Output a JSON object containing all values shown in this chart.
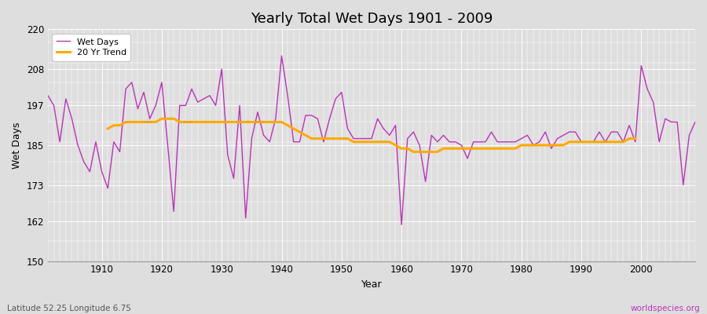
{
  "title": "Yearly Total Wet Days 1901 - 2009",
  "xlabel": "Year",
  "ylabel": "Wet Days",
  "lat_lon_label": "Latitude 52.25 Longitude 6.75",
  "watermark": "worldspecies.org",
  "ylim": [
    150,
    220
  ],
  "yticks": [
    150,
    162,
    173,
    185,
    197,
    208,
    220
  ],
  "line_color": "#bb33bb",
  "trend_color": "#ffaa00",
  "bg_color": "#dedede",
  "years": [
    1901,
    1902,
    1903,
    1904,
    1905,
    1906,
    1907,
    1908,
    1909,
    1910,
    1911,
    1912,
    1913,
    1914,
    1915,
    1916,
    1917,
    1918,
    1919,
    1920,
    1921,
    1922,
    1923,
    1924,
    1925,
    1926,
    1927,
    1928,
    1929,
    1930,
    1931,
    1932,
    1933,
    1934,
    1935,
    1936,
    1937,
    1938,
    1939,
    1940,
    1941,
    1942,
    1943,
    1944,
    1945,
    1946,
    1947,
    1948,
    1949,
    1950,
    1951,
    1952,
    1953,
    1954,
    1955,
    1956,
    1957,
    1958,
    1959,
    1960,
    1961,
    1962,
    1963,
    1964,
    1965,
    1966,
    1967,
    1968,
    1969,
    1970,
    1971,
    1972,
    1973,
    1974,
    1975,
    1976,
    1977,
    1978,
    1979,
    1980,
    1981,
    1982,
    1983,
    1984,
    1985,
    1986,
    1987,
    1988,
    1989,
    1990,
    1991,
    1992,
    1993,
    1994,
    1995,
    1996,
    1997,
    1998,
    1999,
    2000,
    2001,
    2002,
    2003,
    2004,
    2005,
    2006,
    2007,
    2008,
    2009
  ],
  "wet_days": [
    200,
    197,
    186,
    199,
    193,
    185,
    180,
    177,
    186,
    177,
    172,
    186,
    183,
    202,
    204,
    196,
    201,
    193,
    197,
    204,
    185,
    165,
    197,
    197,
    202,
    198,
    199,
    200,
    197,
    208,
    182,
    175,
    197,
    163,
    187,
    195,
    188,
    186,
    193,
    212,
    200,
    186,
    186,
    194,
    194,
    193,
    186,
    193,
    199,
    201,
    190,
    187,
    187,
    187,
    187,
    193,
    190,
    188,
    191,
    161,
    187,
    189,
    185,
    174,
    188,
    186,
    188,
    186,
    186,
    185,
    181,
    186,
    186,
    186,
    189,
    186,
    186,
    186,
    186,
    187,
    188,
    185,
    186,
    189,
    184,
    187,
    188,
    189,
    189,
    186,
    186,
    186,
    189,
    186,
    189,
    189,
    186,
    191,
    186,
    209,
    202,
    198,
    186,
    193,
    192,
    192,
    173,
    188,
    192
  ],
  "trend_years": [
    1911,
    1912,
    1913,
    1914,
    1915,
    1916,
    1917,
    1918,
    1919,
    1920,
    1921,
    1922,
    1923,
    1924,
    1925,
    1926,
    1927,
    1928,
    1929,
    1930,
    1931,
    1932,
    1933,
    1934,
    1935,
    1936,
    1937,
    1938,
    1939,
    1940,
    1941,
    1942,
    1943,
    1944,
    1945,
    1946,
    1947,
    1948,
    1949,
    1950,
    1951,
    1952,
    1953,
    1954,
    1955,
    1956,
    1957,
    1958,
    1959,
    1960,
    1961,
    1962,
    1963,
    1964,
    1965,
    1966,
    1967,
    1968,
    1969,
    1970,
    1971,
    1972,
    1973,
    1974,
    1975,
    1976,
    1977,
    1978,
    1979,
    1980,
    1981,
    1982,
    1983,
    1984,
    1985,
    1986,
    1987,
    1988,
    1989,
    1990,
    1991,
    1992,
    1993,
    1994,
    1995,
    1996,
    1997,
    1998,
    1999
  ],
  "trend_values": [
    190,
    191,
    191,
    192,
    192,
    192,
    192,
    192,
    192,
    193,
    193,
    193,
    192,
    192,
    192,
    192,
    192,
    192,
    192,
    192,
    192,
    192,
    192,
    192,
    192,
    192,
    192,
    192,
    192,
    192,
    191,
    190,
    189,
    188,
    187,
    187,
    187,
    187,
    187,
    187,
    187,
    186,
    186,
    186,
    186,
    186,
    186,
    186,
    185,
    184,
    184,
    183,
    183,
    183,
    183,
    183,
    184,
    184,
    184,
    184,
    184,
    184,
    184,
    184,
    184,
    184,
    184,
    184,
    184,
    185,
    185,
    185,
    185,
    185,
    185,
    185,
    185,
    186,
    186,
    186,
    186,
    186,
    186,
    186,
    186,
    186,
    186,
    187,
    187
  ]
}
